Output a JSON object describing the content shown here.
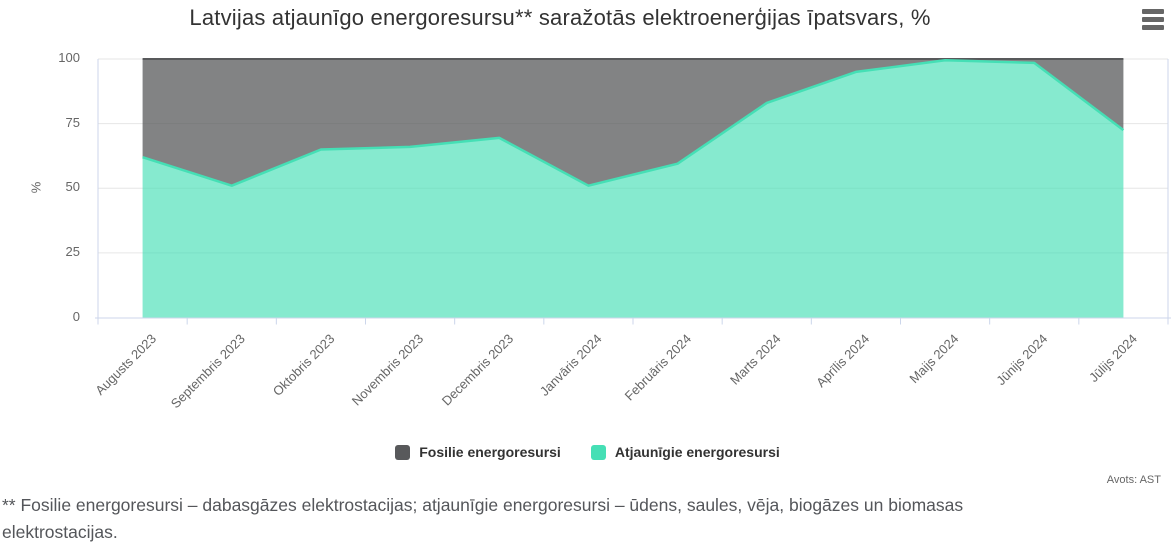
{
  "header": {
    "title": "Latvijas atjaunīgo energoresursu** saražotās elektroenerģijas īpatsvars, %"
  },
  "menu": {
    "icon": "hamburger-icon"
  },
  "y_axis": {
    "title": "%"
  },
  "legend": {
    "items": [
      {
        "label": "Fosilie energoresursi",
        "color": "#58595B"
      },
      {
        "label": "Atjaunīgie energoresursi",
        "color": "#45DFB5"
      }
    ]
  },
  "source": "Avots: AST",
  "footnote": "** Fosilie energoresursi – dabasgāzes elektrostacijas; atjaunīgie energoresursi – ūdens, saules, vēja, biogāzes un biomasas elektrostacijas.",
  "chart_data": {
    "type": "area",
    "stacked": true,
    "title": "Latvijas atjaunīgo energoresursu** saražotās elektroenerģijas īpatsvars, %",
    "xlabel": "",
    "ylabel": "%",
    "ylim": [
      0,
      100
    ],
    "yticks": [
      0,
      25,
      50,
      75,
      100
    ],
    "grid": true,
    "legend_position": "bottom",
    "categories": [
      "Augusts 2023",
      "Septembris 2023",
      "Oktobris 2023",
      "Novembris 2023",
      "Decembris 2023",
      "Janvāris 2024",
      "Februāris 2024",
      "Marts 2024",
      "Aprīlis 2024",
      "Maijs 2024",
      "Jūnijs 2024",
      "Jūlijs 2024"
    ],
    "series": [
      {
        "name": "Fosilie energoresursi",
        "color": "#58595B",
        "fill_opacity": 0.75,
        "values": [
          38,
          49,
          35,
          34,
          30.5,
          49,
          40.5,
          17,
          5,
          0.5,
          1.5,
          27.5
        ]
      },
      {
        "name": "Atjaunīgie energoresursi",
        "color": "#45DFB5",
        "fill_opacity": 0.65,
        "values": [
          62,
          51,
          65,
          66,
          69.5,
          51,
          59.5,
          83,
          95,
          99.5,
          98.5,
          72.5
        ]
      }
    ]
  }
}
